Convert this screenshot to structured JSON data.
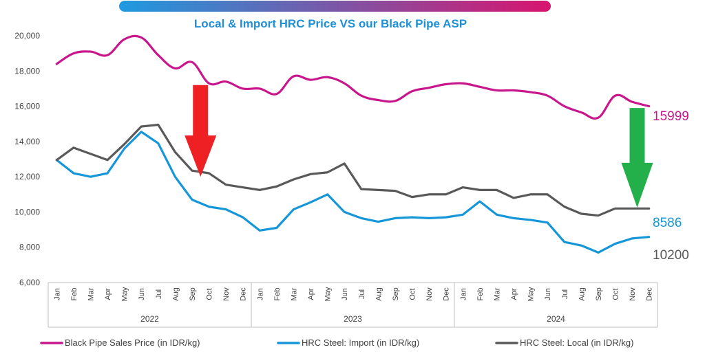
{
  "chart_data": {
    "type": "line",
    "title": "Local & Import HRC Price VS our Black Pipe ASP",
    "title_color": "#1f8fd6",
    "banner_gradient": [
      "#1e9ae0",
      "#d8146e"
    ],
    "ylim": [
      6000,
      20000
    ],
    "y_ticks": [
      "6,000",
      "8,000",
      "10,000",
      "12,000",
      "14,000",
      "16,000",
      "18,000",
      "20,000"
    ],
    "y_tick_values": [
      6000,
      8000,
      10000,
      12000,
      14000,
      16000,
      18000,
      20000
    ],
    "grid": false,
    "legend_position": "bottom",
    "years": [
      {
        "label": "2022",
        "months": 12
      },
      {
        "label": "2023",
        "months": 12
      },
      {
        "label": "2024",
        "months": 12
      }
    ],
    "categories": [
      "Jan",
      "Feb",
      "Mar",
      "Apr",
      "May",
      "Jun",
      "Jul",
      "Aug",
      "Sep",
      "Oct",
      "Nov",
      "Dec",
      "Jan",
      "Feb",
      "Mar",
      "Apr",
      "May",
      "Jun",
      "Jul",
      "Aug",
      "Sep",
      "Oct",
      "Nov",
      "Dec",
      "Jan",
      "Feb",
      "Mar",
      "Apr",
      "May",
      "Jun",
      "Jul",
      "Aug",
      "Sep",
      "Oct",
      "Nov",
      "Dec"
    ],
    "series": [
      {
        "name": "Black Pipe Sales Price (in IDR/kg)",
        "color": "#c8168c",
        "smooth": true,
        "values": [
          18400,
          19000,
          19100,
          18900,
          19800,
          19900,
          18900,
          18150,
          18500,
          17300,
          17400,
          17000,
          17000,
          16700,
          17700,
          17500,
          17650,
          17300,
          16600,
          16350,
          16300,
          16850,
          17050,
          17250,
          17300,
          17100,
          16900,
          16900,
          16800,
          16600,
          16000,
          15650,
          15350,
          16600,
          16250,
          15999
        ],
        "end_label": "15999"
      },
      {
        "name": "HRC Steel: Import (in IDR/kg)",
        "color": "#1596d8",
        "smooth": false,
        "values": [
          12950,
          12200,
          12000,
          12200,
          13600,
          14550,
          13900,
          12000,
          10700,
          10300,
          10150,
          9700,
          8950,
          9100,
          10150,
          10550,
          11000,
          10000,
          9650,
          9450,
          9650,
          9700,
          9650,
          9700,
          9850,
          10600,
          9850,
          9650,
          9550,
          9400,
          8300,
          8100,
          7700,
          8200,
          8500,
          8586
        ],
        "end_label": "8586"
      },
      {
        "name": "HRC Steel: Local (in IDR/kg)",
        "color": "#595959",
        "smooth": false,
        "values": [
          12950,
          13650,
          13300,
          12950,
          13850,
          14850,
          14950,
          13400,
          12350,
          12200,
          11550,
          11400,
          11250,
          11450,
          11850,
          12150,
          12250,
          12750,
          11300,
          11250,
          11200,
          10850,
          11000,
          11000,
          11400,
          11250,
          11250,
          10800,
          11000,
          11000,
          10300,
          9900,
          9800,
          10200,
          10200,
          10200
        ],
        "end_label": "10200"
      }
    ],
    "annotations": [
      {
        "type": "arrow-down",
        "color": "#ee2024",
        "at_month_index": 8.5,
        "from": 17200,
        "to": 12000
      },
      {
        "type": "arrow-down",
        "color": "#23b04a",
        "at_month_index": 34.3,
        "from": 15900,
        "to": 10250
      }
    ]
  }
}
